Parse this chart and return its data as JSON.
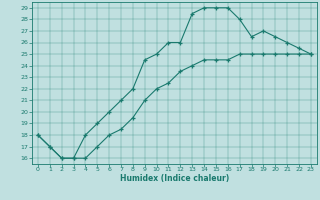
{
  "xlabel": "Humidex (Indice chaleur)",
  "bg_color": "#c0e0e0",
  "line_color": "#1a7a6e",
  "xlim": [
    -0.5,
    23.5
  ],
  "ylim": [
    15.5,
    29.5
  ],
  "xticks": [
    0,
    1,
    2,
    3,
    4,
    5,
    6,
    7,
    8,
    9,
    10,
    11,
    12,
    13,
    14,
    15,
    16,
    17,
    18,
    19,
    20,
    21,
    22,
    23
  ],
  "yticks": [
    16,
    17,
    18,
    19,
    20,
    21,
    22,
    23,
    24,
    25,
    26,
    27,
    28,
    29
  ],
  "curve1_x": [
    0,
    1,
    2,
    3,
    4,
    5,
    6,
    7,
    8,
    9,
    10,
    11,
    12,
    13,
    14,
    15,
    16,
    17,
    18,
    19,
    20,
    21,
    22,
    23
  ],
  "curve1_y": [
    18,
    17,
    16,
    16,
    18,
    19,
    20,
    21,
    22,
    24.5,
    25,
    26,
    26,
    28.5,
    29,
    29,
    29,
    28,
    26.5,
    27,
    26.5,
    26,
    25.5,
    25
  ],
  "curve2_x": [
    0,
    1,
    2,
    3,
    4,
    5,
    6,
    7,
    8,
    9,
    10,
    11,
    12,
    13,
    14,
    15,
    16,
    17,
    18,
    19,
    20,
    21,
    22,
    23
  ],
  "curve2_y": [
    18,
    17,
    16,
    16,
    16,
    17,
    18,
    18.5,
    19.5,
    21,
    22,
    22.5,
    23.5,
    24,
    24.5,
    24.5,
    24.5,
    25,
    25,
    25,
    25,
    25,
    25,
    25
  ]
}
